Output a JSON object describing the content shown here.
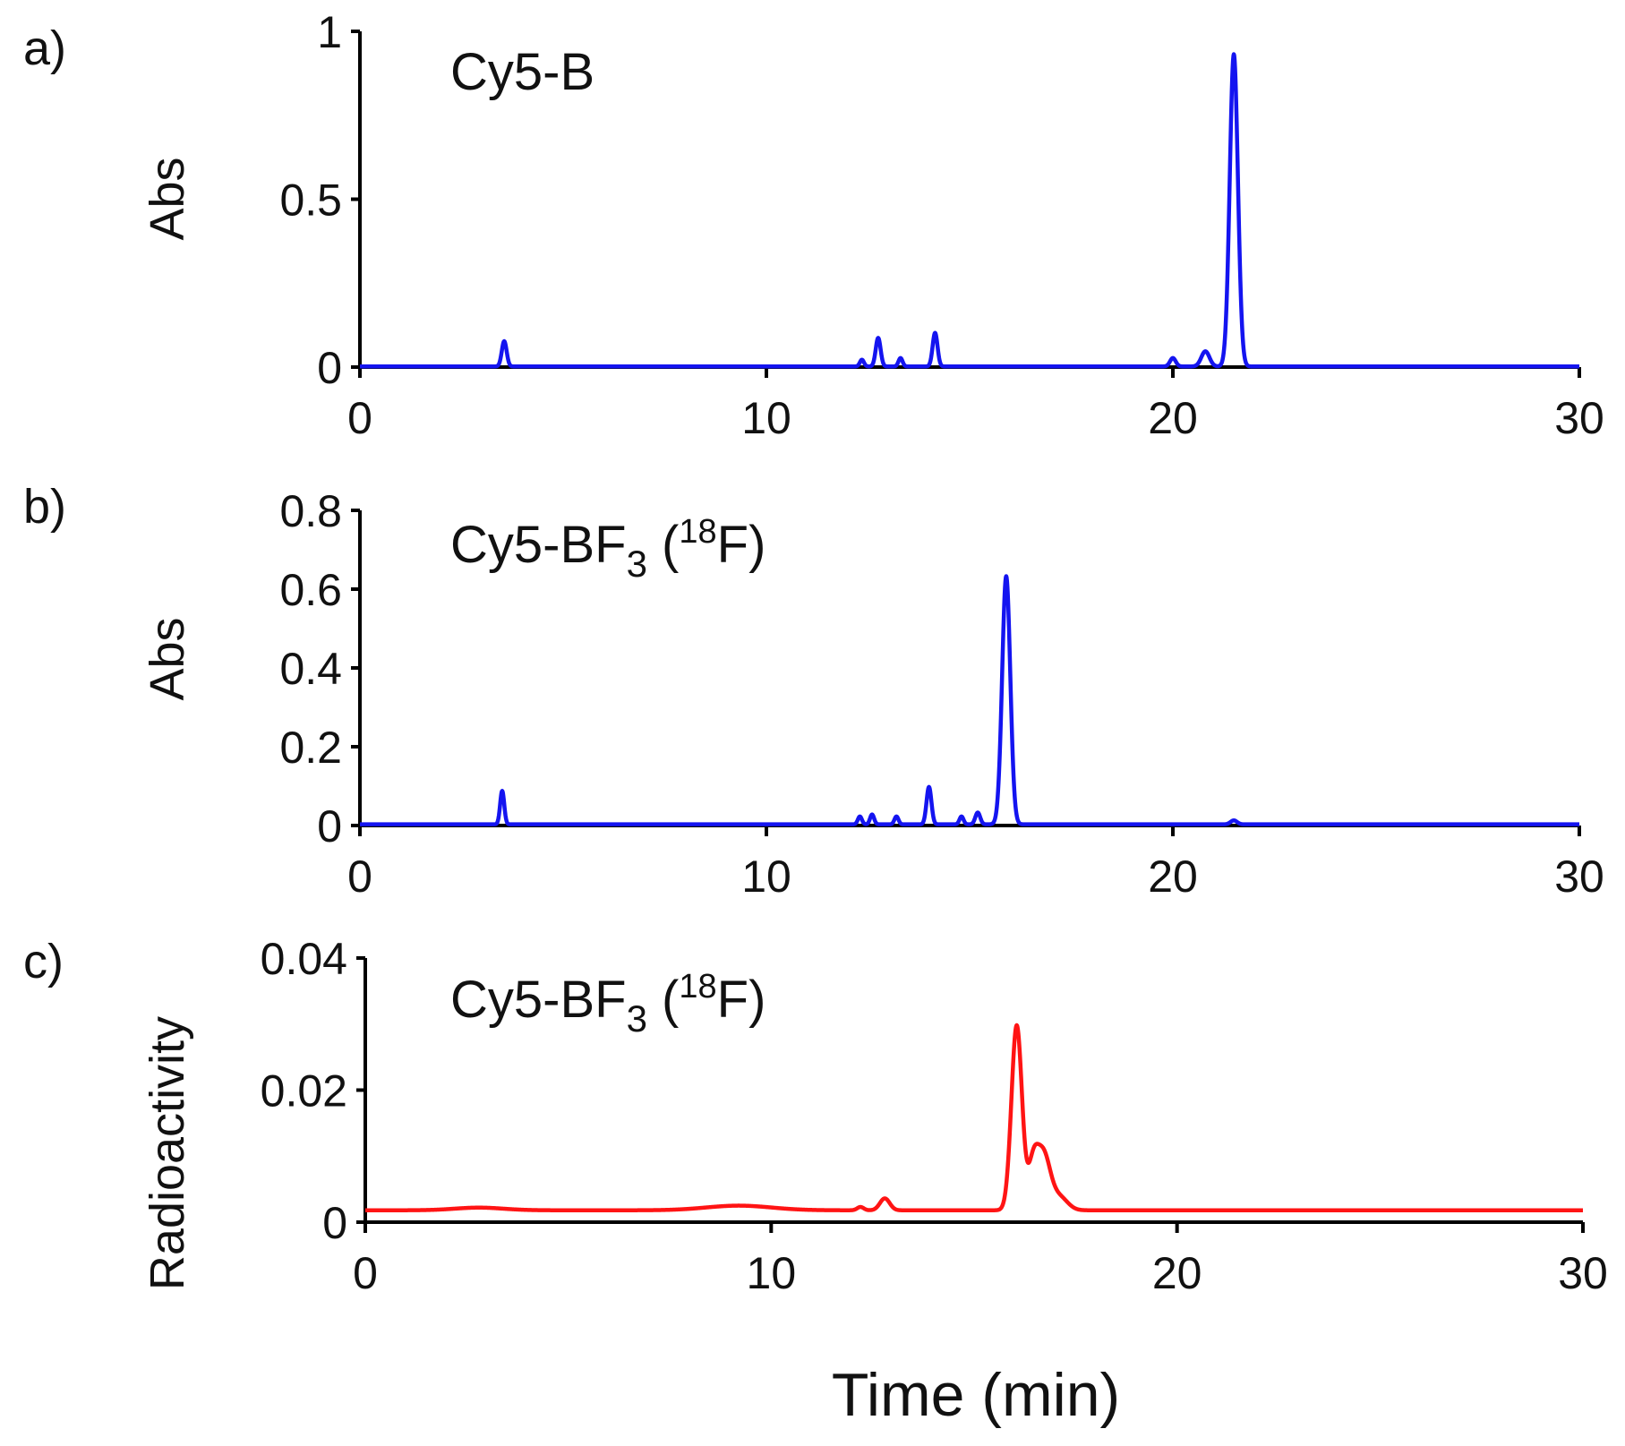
{
  "figure": {
    "xlabel": "Time (min)",
    "colors": {
      "axis": "#000000",
      "blue": "#1414f0",
      "red": "#ff1414"
    }
  },
  "chart_data": [
    {
      "type": "line",
      "panel_label": "a)",
      "title": "Cy5-B",
      "xlabel": "Time (min)",
      "ylabel": "Abs",
      "xlim": [
        0,
        30
      ],
      "ylim": [
        0,
        1
      ],
      "xticks": [
        0,
        10,
        20,
        30
      ],
      "yticks": [
        0,
        0.5,
        1
      ],
      "xtick_labels": [
        "0",
        "10",
        "20",
        "30"
      ],
      "ytick_labels": [
        "0",
        "0.5",
        "1"
      ],
      "series": [
        {
          "name": "Cy5-B",
          "color": "#1414f0",
          "baseline": 0.002,
          "peaks": [
            {
              "x": 3.55,
              "height": 0.075,
              "width": 0.06
            },
            {
              "x": 12.35,
              "height": 0.02,
              "width": 0.05
            },
            {
              "x": 12.75,
              "height": 0.085,
              "width": 0.06
            },
            {
              "x": 13.3,
              "height": 0.025,
              "width": 0.05
            },
            {
              "x": 14.15,
              "height": 0.1,
              "width": 0.06
            },
            {
              "x": 20.0,
              "height": 0.025,
              "width": 0.07
            },
            {
              "x": 20.8,
              "height": 0.045,
              "width": 0.1
            },
            {
              "x": 21.5,
              "height": 0.93,
              "width": 0.1
            }
          ]
        }
      ]
    },
    {
      "type": "line",
      "panel_label": "b)",
      "title_main": "Cy5-BF",
      "title_sub": "3",
      "title_open": " (",
      "title_sup": "18",
      "title_close": "F)",
      "xlabel": "Time (min)",
      "ylabel": "Abs",
      "xlim": [
        0,
        30
      ],
      "ylim": [
        0,
        0.8
      ],
      "xticks": [
        0,
        10,
        20,
        30
      ],
      "yticks": [
        0,
        0.2,
        0.4,
        0.6,
        0.8
      ],
      "xtick_labels": [
        "0",
        "10",
        "20",
        "30"
      ],
      "ytick_labels": [
        "0",
        "0.2",
        "0.4",
        "0.6",
        "0.8"
      ],
      "series": [
        {
          "name": "Cy5-BF3 (18F) absorbance",
          "color": "#1414f0",
          "baseline": 0.003,
          "peaks": [
            {
              "x": 3.5,
              "height": 0.085,
              "width": 0.05
            },
            {
              "x": 12.3,
              "height": 0.02,
              "width": 0.05
            },
            {
              "x": 12.6,
              "height": 0.025,
              "width": 0.05
            },
            {
              "x": 13.2,
              "height": 0.02,
              "width": 0.05
            },
            {
              "x": 14.0,
              "height": 0.095,
              "width": 0.06
            },
            {
              "x": 14.8,
              "height": 0.02,
              "width": 0.05
            },
            {
              "x": 15.2,
              "height": 0.03,
              "width": 0.06
            },
            {
              "x": 15.9,
              "height": 0.63,
              "width": 0.1
            },
            {
              "x": 21.5,
              "height": 0.01,
              "width": 0.08
            }
          ]
        }
      ]
    },
    {
      "type": "line",
      "panel_label": "c)",
      "title_main": "Cy5-BF",
      "title_sub": "3",
      "title_open": " (",
      "title_sup": "18",
      "title_close": "F)",
      "xlabel": "Time (min)",
      "ylabel": "Radioactivity",
      "xlim": [
        0,
        30
      ],
      "ylim": [
        0,
        0.04
      ],
      "xticks": [
        0,
        10,
        20,
        30
      ],
      "yticks": [
        0,
        0.02,
        0.04
      ],
      "xtick_labels": [
        "0",
        "10",
        "20",
        "30"
      ],
      "ytick_labels": [
        "0",
        "0.02",
        "0.04"
      ],
      "series": [
        {
          "name": "Cy5-BF3 (18F) radioactivity",
          "color": "#ff1414",
          "baseline": 0.0018,
          "peaks": [
            {
              "x": 2.8,
              "height": 0.0004,
              "width": 0.6
            },
            {
              "x": 9.2,
              "height": 0.0007,
              "width": 0.8
            },
            {
              "x": 12.2,
              "height": 0.0005,
              "width": 0.08
            },
            {
              "x": 12.8,
              "height": 0.0018,
              "width": 0.12
            },
            {
              "x": 16.05,
              "height": 0.028,
              "width": 0.13
            },
            {
              "x": 16.45,
              "height": 0.006,
              "width": 0.12
            },
            {
              "x": 16.7,
              "height": 0.0085,
              "width": 0.17
            },
            {
              "x": 17.1,
              "height": 0.002,
              "width": 0.2
            }
          ]
        }
      ]
    }
  ]
}
